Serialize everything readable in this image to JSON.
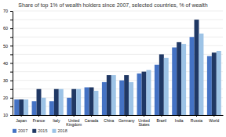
{
  "chart_data": {
    "type": "bar",
    "title": "Share of top 1% of wealth holders since 2007, selected countries, % of wealth",
    "categories": [
      "Japan",
      "France",
      "Italy",
      "United\nKingdom",
      "Canada",
      "China",
      "Germany",
      "United\nStates",
      "Brazil",
      "India",
      "Russia",
      "World"
    ],
    "series": [
      {
        "name": "2007",
        "color": "#4472c4",
        "values": [
          19,
          18,
          18,
          20,
          26,
          29,
          30,
          34,
          39,
          49,
          55,
          44
        ]
      },
      {
        "name": "2015",
        "color": "#203864",
        "values": [
          19,
          25,
          25,
          25,
          26,
          33,
          33,
          35,
          45,
          52,
          65,
          46
        ]
      },
      {
        "name": "2018",
        "color": "#9dc3e6",
        "values": [
          19,
          20,
          25,
          25,
          24,
          33,
          29,
          36,
          43,
          51,
          57,
          47
        ]
      }
    ],
    "ylim": [
      10,
      70
    ],
    "yticks": [
      10,
      {
        "value": 15,
        "label": ""
      },
      20,
      {
        "value": 25,
        "label": ""
      },
      30,
      {
        "value": 35,
        "label": ""
      },
      40,
      {
        "value": 45,
        "label": ""
      },
      50,
      {
        "value": 55,
        "label": ""
      },
      60,
      {
        "value": 65,
        "label": ""
      },
      70
    ],
    "grid": true,
    "legend": "lower left"
  }
}
